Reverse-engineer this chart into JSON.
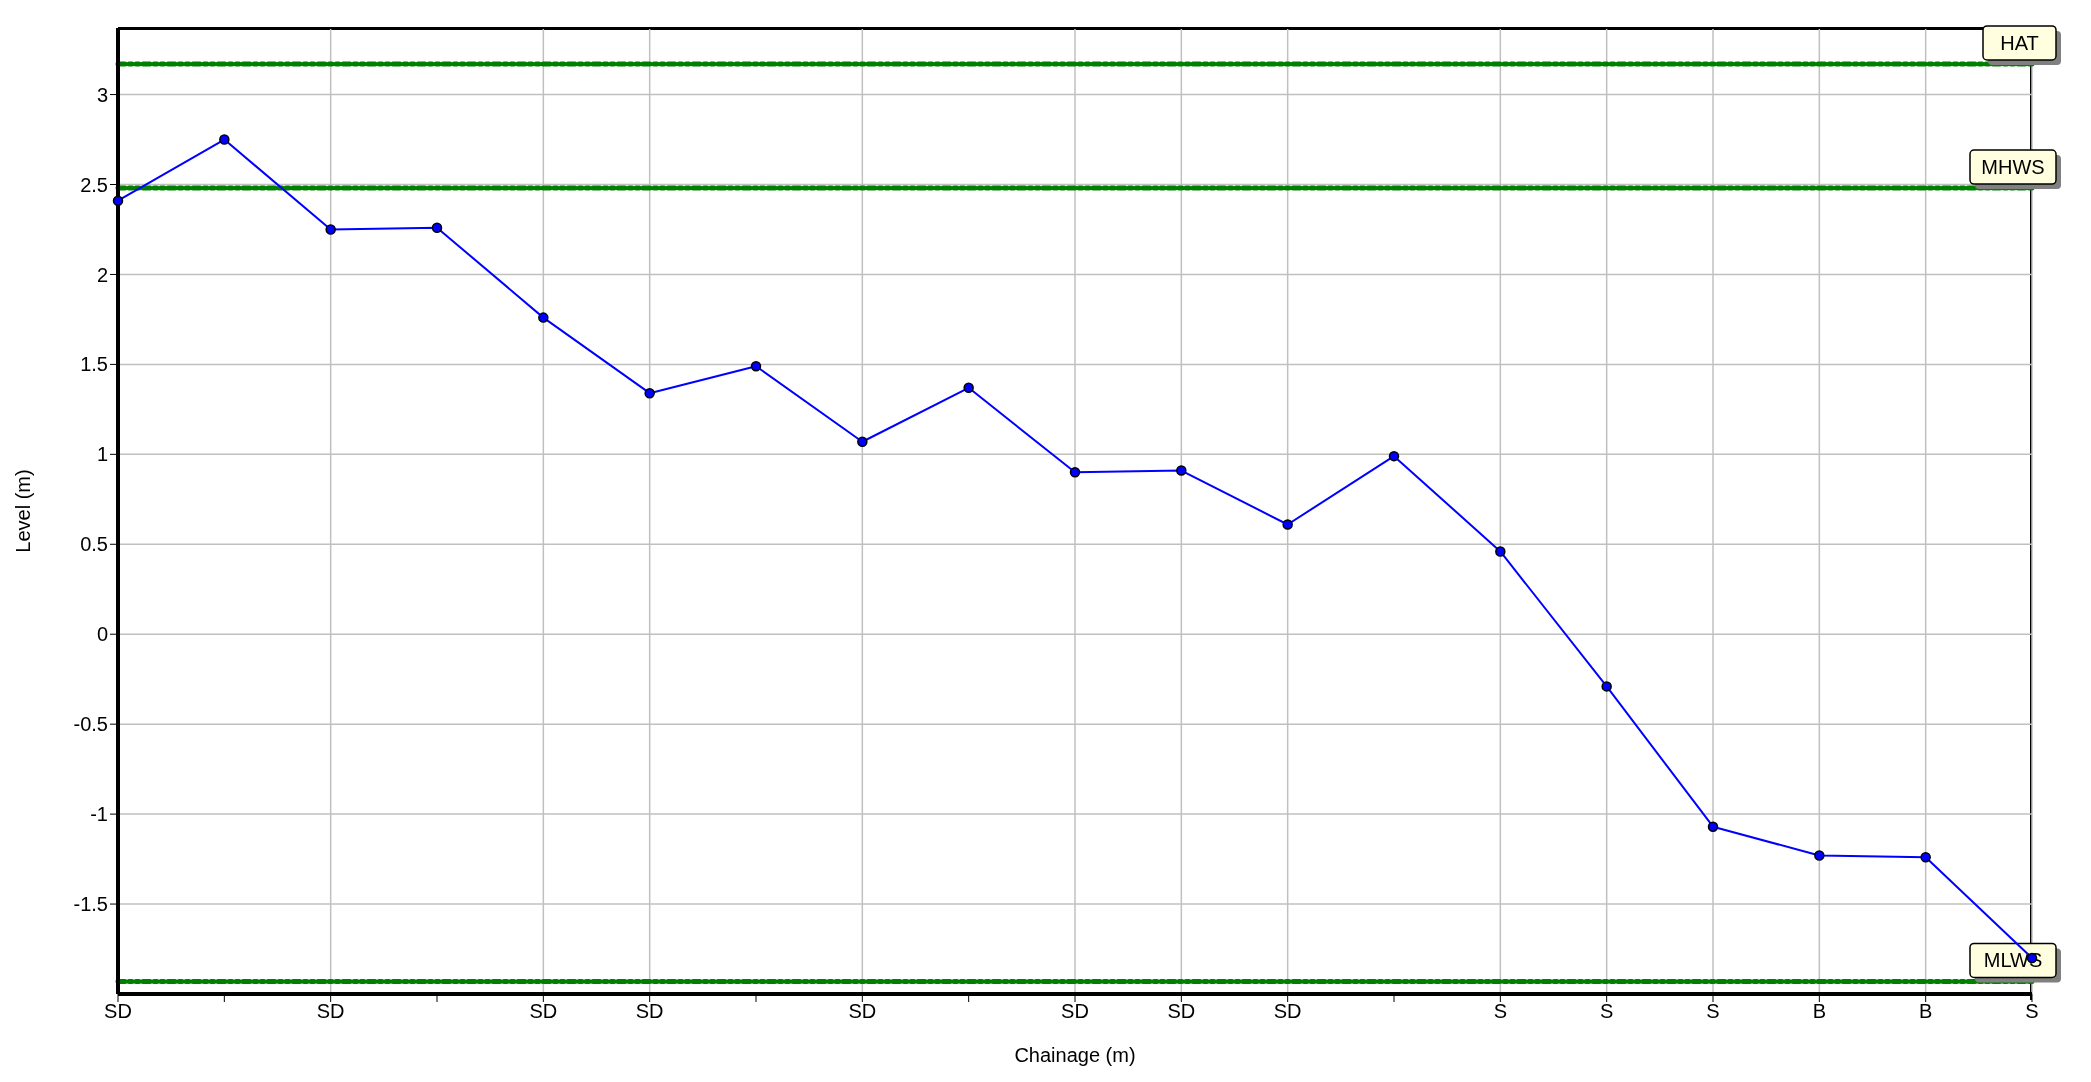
{
  "chart_data": {
    "type": "line",
    "xlabel": "Chainage (m)",
    "ylabel": "Level (m)",
    "categories": [
      "SD",
      null,
      "SD",
      null,
      "SD",
      "SD",
      null,
      "SD",
      null,
      "SD",
      "SD",
      "SD",
      null,
      "S",
      "S",
      "S",
      "B",
      "B",
      "S"
    ],
    "series": [
      {
        "color": "#0000ff",
        "values": [
          2.41,
          2.75,
          2.25,
          2.26,
          1.76,
          1.34,
          1.49,
          1.07,
          1.37,
          0.9,
          0.91,
          0.61,
          0.99,
          0.46,
          -0.29,
          -1.07,
          -1.23,
          -1.24,
          -1.8
        ]
      }
    ],
    "ylim": [
      -2,
      3.37
    ],
    "yticks": [
      -1.5,
      -1,
      -0.5,
      0,
      0.5,
      1,
      1.5,
      2,
      2.5,
      3
    ],
    "grid": true,
    "legend": false,
    "marker": "circle",
    "line_style": "solid",
    "ref_lines": [
      {
        "axis": "y",
        "value": 3.17,
        "label": "HAT",
        "color": "#008000",
        "line_style": "dashed"
      },
      {
        "axis": "y",
        "value": 2.48,
        "label": "MHWS",
        "color": "#008000",
        "line_style": "dashed"
      },
      {
        "axis": "y",
        "value": -1.93,
        "label": "MLWS",
        "color": "#008000",
        "line_style": "dashed"
      }
    ]
  }
}
